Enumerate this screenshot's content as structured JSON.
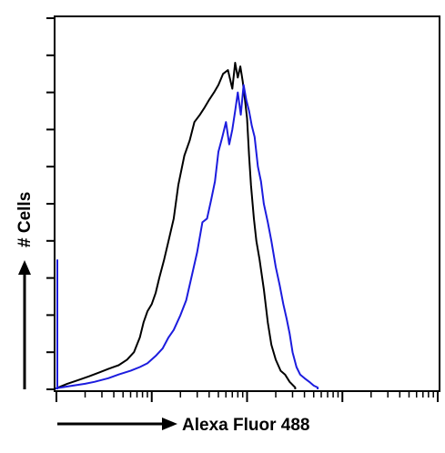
{
  "chart_data": {
    "type": "line",
    "title": "",
    "xlabel": "Alexa Fluor 488",
    "ylabel": "# Cells",
    "x_scale": "log",
    "xlim": [
      1,
      10000
    ],
    "ylim": [
      0,
      100
    ],
    "grid": false,
    "legend": "none",
    "series": [
      {
        "color": "#000000",
        "x": [
          1,
          1.3,
          1.7,
          2.2,
          2.8,
          3.5,
          4.5,
          5.5,
          6.5,
          7.5,
          8.2,
          9,
          10,
          11,
          12,
          13.5,
          15,
          17,
          19,
          22,
          25,
          28,
          32,
          36,
          40,
          45,
          50,
          56,
          63,
          70,
          75,
          80,
          85,
          90,
          95,
          100,
          105,
          110,
          118,
          125,
          135,
          150,
          165,
          180,
          200,
          225,
          250,
          280,
          320
        ],
        "y": [
          0.3,
          1.5,
          2.5,
          3.5,
          4.5,
          5.5,
          6.5,
          8,
          10,
          14,
          18,
          21,
          23,
          26,
          30,
          35,
          40,
          46,
          55,
          63,
          67,
          72,
          74,
          76,
          78,
          80,
          82,
          85,
          86,
          81,
          88,
          84,
          87,
          83,
          78,
          73,
          63,
          55,
          46,
          40,
          35,
          27,
          18,
          12,
          8,
          5,
          4,
          2,
          0.5
        ]
      },
      {
        "color": "#1c1cde",
        "x": [
          1,
          1.5,
          2,
          2.5,
          3.5,
          4.5,
          6,
          7.5,
          9,
          11,
          13,
          15,
          17,
          20,
          23,
          26,
          30,
          34,
          38,
          42,
          46,
          50,
          55,
          60,
          65,
          70,
          75,
          80,
          86,
          92,
          98,
          105,
          112,
          120,
          130,
          140,
          150,
          165,
          180,
          200,
          220,
          240,
          260,
          280,
          300,
          330,
          360,
          400,
          450,
          500,
          550
        ],
        "y": [
          0.3,
          1,
          1.5,
          2,
          3,
          4,
          5,
          6,
          7,
          9,
          11,
          14,
          16,
          20,
          24,
          30,
          37,
          45,
          46,
          51,
          56,
          64,
          68,
          72,
          66,
          70,
          75,
          80,
          74,
          82,
          78,
          75,
          71,
          68,
          60,
          56,
          50,
          45,
          40,
          33,
          28,
          23,
          19,
          15,
          10,
          6,
          4,
          3,
          2,
          1,
          0.5
        ]
      }
    ]
  }
}
